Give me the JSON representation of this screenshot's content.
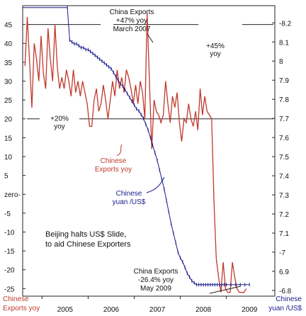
{
  "chart_data": {
    "type": "line",
    "xlabel": "",
    "x_ticks": [
      "2005",
      "2006",
      "2007",
      "2008",
      "2009"
    ],
    "x_range": [
      2004.58,
      2010.05
    ],
    "left_axis": {
      "label_lines": [
        "Chinese",
        "Exports yoy"
      ],
      "ylim": [
        -27,
        50
      ],
      "ticks": [
        45,
        40,
        35,
        30,
        25,
        20,
        15,
        10,
        5,
        0,
        -5,
        -10,
        -15,
        -20,
        -25
      ],
      "tick_labels": [
        "45",
        "40",
        "35",
        "30",
        "25",
        "20",
        "15",
        "10",
        "5",
        "zero-",
        "-5",
        "-10",
        "-15",
        "-20",
        "-25"
      ]
    },
    "right_axis": {
      "label_lines": [
        "Chinese",
        "yuan /US$"
      ],
      "ylim": [
        6.77,
        8.29
      ],
      "ticks": [
        8.2,
        8.1,
        8.0,
        7.9,
        7.8,
        7.7,
        7.6,
        7.5,
        7.4,
        7.3,
        7.2,
        7.1,
        7.0,
        6.9,
        6.8
      ],
      "tick_labels": [
        "-8.2",
        "8.1",
        "8",
        "7.9",
        "7.8",
        "7.7",
        "7.6",
        "7.5",
        "7.4",
        "7.3",
        "7.2",
        "7.1",
        "-7",
        "6.9",
        "-6.8"
      ]
    },
    "series": [
      {
        "name": "Chinese Exports yoy",
        "axis": "left",
        "color": "#c0392b",
        "x": [
          2004.63,
          2004.68,
          2004.73,
          2004.78,
          2004.83,
          2004.88,
          2004.93,
          2004.98,
          2005.03,
          2005.08,
          2005.13,
          2005.18,
          2005.23,
          2005.28,
          2005.33,
          2005.38,
          2005.43,
          2005.48,
          2005.53,
          2005.58,
          2005.63,
          2005.68,
          2005.73,
          2005.78,
          2005.83,
          2005.88,
          2005.93,
          2005.98,
          2006.03,
          2006.08,
          2006.13,
          2006.18,
          2006.23,
          2006.28,
          2006.33,
          2006.38,
          2006.43,
          2006.48,
          2006.53,
          2006.58,
          2006.63,
          2006.68,
          2006.73,
          2006.78,
          2006.83,
          2006.88,
          2006.93,
          2006.98,
          2007.03,
          2007.08,
          2007.13,
          2007.18,
          2007.23,
          2007.28,
          2007.33,
          2007.38,
          2007.43,
          2007.48,
          2007.53,
          2007.58,
          2007.63,
          2007.68,
          2007.73,
          2007.78,
          2007.83,
          2007.88,
          2007.93,
          2007.98,
          2008.03,
          2008.08,
          2008.13,
          2008.18,
          2008.23,
          2008.28,
          2008.33,
          2008.38,
          2008.43,
          2008.48,
          2008.53,
          2008.58,
          2008.63,
          2008.68,
          2008.73,
          2008.78,
          2008.83,
          2008.88,
          2008.93,
          2008.98,
          2009.03,
          2009.08,
          2009.13,
          2009.18,
          2009.23,
          2009.28,
          2009.33,
          2009.38,
          2009.43
        ],
        "y": [
          34,
          47,
          35,
          23,
          40,
          36,
          30,
          42,
          32,
          28,
          44,
          36,
          30,
          45,
          34,
          28,
          31,
          28,
          33,
          30,
          26,
          33,
          27,
          30,
          26,
          30,
          27,
          24,
          18,
          18,
          25,
          28,
          22,
          24,
          29,
          25,
          20,
          25,
          30,
          26,
          33,
          28,
          31,
          27,
          33,
          31,
          28,
          24,
          29,
          24,
          30,
          27,
          20,
          48,
          30,
          12,
          25,
          22,
          21,
          19,
          21,
          30,
          24,
          19,
          26,
          23,
          27,
          19,
          14,
          20,
          19,
          24,
          20,
          18,
          22,
          17,
          28,
          21,
          26,
          22,
          21,
          20,
          -2,
          -17,
          -22,
          -26,
          -18,
          -25,
          -26,
          -26,
          -18,
          -22,
          -25,
          -26,
          -26,
          -26,
          -25
        ]
      },
      {
        "name": "Chinese yuan /US$",
        "axis": "right",
        "color": "#1a1a8c",
        "x": [
          2004.58,
          2005.55,
          2005.6,
          2005.65,
          2005.7,
          2005.75,
          2005.8,
          2005.85,
          2005.9,
          2005.95,
          2006.0,
          2006.05,
          2006.1,
          2006.15,
          2006.2,
          2006.25,
          2006.3,
          2006.35,
          2006.4,
          2006.45,
          2006.5,
          2006.55,
          2006.6,
          2006.65,
          2006.7,
          2006.75,
          2006.8,
          2006.85,
          2006.9,
          2006.95,
          2007.0,
          2007.05,
          2007.1,
          2007.15,
          2007.2,
          2007.25,
          2007.3,
          2007.35,
          2007.4,
          2007.45,
          2007.5,
          2007.55,
          2007.6,
          2007.65,
          2007.7,
          2007.75,
          2007.8,
          2007.85,
          2007.9,
          2007.95,
          2008.0,
          2008.05,
          2008.1,
          2008.15,
          2008.2,
          2008.25,
          2008.3,
          2008.35,
          2008.4,
          2008.45,
          2008.5,
          2008.55,
          2008.6,
          2008.65,
          2008.7,
          2008.75,
          2008.8,
          2008.85,
          2008.9,
          2008.95,
          2009.0,
          2009.1,
          2009.2,
          2009.3,
          2009.4,
          2009.5
        ],
        "y": [
          8.28,
          8.28,
          8.11,
          8.1,
          8.09,
          8.09,
          8.08,
          8.07,
          8.07,
          8.06,
          8.06,
          8.05,
          8.04,
          8.03,
          8.02,
          8.01,
          8.0,
          7.99,
          7.98,
          7.97,
          7.96,
          7.94,
          7.92,
          7.9,
          7.88,
          7.87,
          7.85,
          7.83,
          7.81,
          7.79,
          7.77,
          7.75,
          7.74,
          7.72,
          7.7,
          7.67,
          7.64,
          7.6,
          7.56,
          7.52,
          7.48,
          7.43,
          7.38,
          7.33,
          7.27,
          7.21,
          7.15,
          7.1,
          7.05,
          7.0,
          6.97,
          6.95,
          6.92,
          6.89,
          6.87,
          6.85,
          6.84,
          6.83,
          6.83,
          6.83,
          6.83,
          6.83,
          6.83,
          6.83,
          6.83,
          6.83,
          6.83,
          6.83,
          6.83,
          6.83,
          6.83,
          6.83,
          6.83,
          6.83,
          6.83,
          6.83
        ]
      }
    ],
    "reference_lines": [
      {
        "axis": "left",
        "y": 45,
        "label_lines": [
          "+45%",
          "yoy"
        ]
      },
      {
        "axis": "left",
        "y": 20,
        "label_lines": [
          "+20%",
          "yoy"
        ]
      }
    ],
    "annotations": [
      {
        "id": "peak",
        "lines": [
          "China Exports",
          "+47% yoy",
          "March 2007"
        ],
        "color": "black"
      },
      {
        "id": "trough",
        "lines": [
          "China Exports",
          "-26.4% yoy",
          "May 2009"
        ],
        "color": "black"
      },
      {
        "id": "exports-label",
        "lines": [
          "Chinese",
          "Exports yoy"
        ],
        "color": "red"
      },
      {
        "id": "yuan-label",
        "lines": [
          "Chinese",
          "yuan /US$"
        ],
        "color": "blue"
      },
      {
        "id": "beijing",
        "lines": [
          "Beijing halts US$ Slide,",
          "to aid Chinese Exporters"
        ],
        "color": "black"
      }
    ],
    "grid": false,
    "legend": "none"
  }
}
